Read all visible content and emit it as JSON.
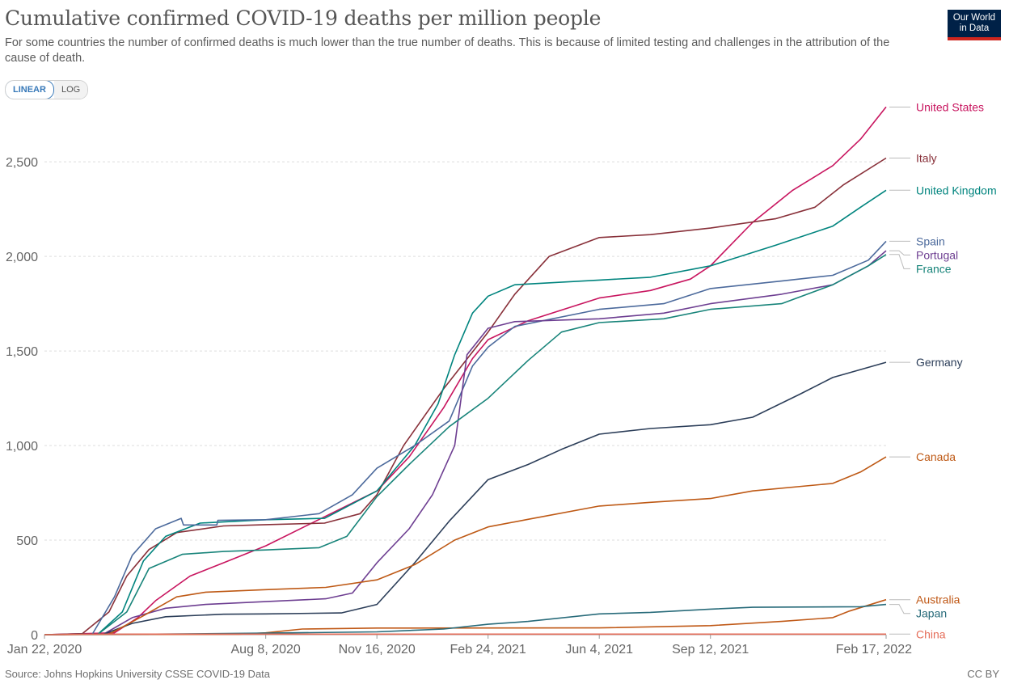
{
  "title": "Cumulative confirmed COVID-19 deaths per million people",
  "subtitle": "For some countries the number of confirmed deaths is much lower than the true number of deaths. This is because of limited testing and challenges in the attribution of the cause of death.",
  "logo": {
    "line1": "Our World",
    "line2": "in Data"
  },
  "toggle": {
    "linear": "LINEAR",
    "log": "LOG",
    "selected": "LINEAR"
  },
  "source": "Source: Johns Hopkins University CSSE COVID-19 Data",
  "license": "CC BY",
  "chart_data": {
    "type": "line",
    "x_label": "",
    "y_label": "",
    "x_range": [
      "2020-01-22",
      "2022-02-17"
    ],
    "y_range": [
      0,
      2800
    ],
    "grid": "horizontal dashed",
    "y_ticks": [
      {
        "value": 0,
        "label": "0"
      },
      {
        "value": 500,
        "label": "500"
      },
      {
        "value": 1000,
        "label": "1,000"
      },
      {
        "value": 1500,
        "label": "1,500"
      },
      {
        "value": 2000,
        "label": "2,000"
      },
      {
        "value": 2500,
        "label": "2,500"
      }
    ],
    "x_ticks": [
      {
        "value": "2020-01-22",
        "label": "Jan 22, 2020"
      },
      {
        "value": "2020-08-08",
        "label": "Aug 8, 2020"
      },
      {
        "value": "2020-11-16",
        "label": "Nov 16, 2020"
      },
      {
        "value": "2021-02-24",
        "label": "Feb 24, 2021"
      },
      {
        "value": "2021-06-04",
        "label": "Jun 4, 2021"
      },
      {
        "value": "2021-09-12",
        "label": "Sep 12, 2021"
      },
      {
        "value": "2022-02-17",
        "label": "Feb 17, 2022"
      }
    ],
    "legend_position": "right end labels",
    "series": [
      {
        "name": "United States",
        "color": "#c8155f",
        "label_value": 2790,
        "points": [
          [
            "2020-01-22",
            0
          ],
          [
            "2020-03-25",
            10
          ],
          [
            "2020-04-15",
            90
          ],
          [
            "2020-05-01",
            180
          ],
          [
            "2020-06-01",
            310
          ],
          [
            "2020-07-01",
            380
          ],
          [
            "2020-08-08",
            470
          ],
          [
            "2020-09-15",
            580
          ],
          [
            "2020-11-16",
            760
          ],
          [
            "2020-12-15",
            940
          ],
          [
            "2021-01-15",
            1200
          ],
          [
            "2021-02-10",
            1460
          ],
          [
            "2021-02-24",
            1560
          ],
          [
            "2021-04-01",
            1660
          ],
          [
            "2021-06-04",
            1780
          ],
          [
            "2021-07-20",
            1820
          ],
          [
            "2021-08-25",
            1880
          ],
          [
            "2021-09-12",
            1950
          ],
          [
            "2021-10-20",
            2180
          ],
          [
            "2021-11-25",
            2350
          ],
          [
            "2021-12-31",
            2480
          ],
          [
            "2022-01-25",
            2620
          ],
          [
            "2022-02-17",
            2790
          ]
        ]
      },
      {
        "name": "Italy",
        "color": "#883039",
        "label_value": 2520,
        "points": [
          [
            "2020-01-22",
            0
          ],
          [
            "2020-02-25",
            5
          ],
          [
            "2020-03-20",
            120
          ],
          [
            "2020-04-05",
            310
          ],
          [
            "2020-04-25",
            450
          ],
          [
            "2020-05-20",
            540
          ],
          [
            "2020-07-01",
            575
          ],
          [
            "2020-08-08",
            582
          ],
          [
            "2020-09-30",
            590
          ],
          [
            "2020-11-01",
            640
          ],
          [
            "2020-11-16",
            740
          ],
          [
            "2020-12-10",
            1000
          ],
          [
            "2021-01-15",
            1300
          ],
          [
            "2021-02-24",
            1600
          ],
          [
            "2021-03-20",
            1800
          ],
          [
            "2021-04-20",
            2000
          ],
          [
            "2021-06-04",
            2100
          ],
          [
            "2021-07-20",
            2115
          ],
          [
            "2021-09-12",
            2150
          ],
          [
            "2021-11-10",
            2200
          ],
          [
            "2021-12-15",
            2260
          ],
          [
            "2022-01-10",
            2380
          ],
          [
            "2022-02-17",
            2520
          ]
        ]
      },
      {
        "name": "United Kingdom",
        "color": "#00847e",
        "label_value": 2350,
        "points": [
          [
            "2020-01-22",
            0
          ],
          [
            "2020-03-10",
            2
          ],
          [
            "2020-04-01",
            120
          ],
          [
            "2020-04-20",
            390
          ],
          [
            "2020-05-10",
            520
          ],
          [
            "2020-06-10",
            590
          ],
          [
            "2020-08-08",
            608
          ],
          [
            "2020-09-30",
            615
          ],
          [
            "2020-11-16",
            760
          ],
          [
            "2020-12-20",
            1000
          ],
          [
            "2021-01-10",
            1220
          ],
          [
            "2021-01-25",
            1480
          ],
          [
            "2021-02-10",
            1700
          ],
          [
            "2021-02-24",
            1790
          ],
          [
            "2021-03-20",
            1850
          ],
          [
            "2021-06-04",
            1875
          ],
          [
            "2021-07-20",
            1890
          ],
          [
            "2021-09-12",
            1950
          ],
          [
            "2021-11-10",
            2060
          ],
          [
            "2021-12-31",
            2160
          ],
          [
            "2022-01-25",
            2260
          ],
          [
            "2022-02-17",
            2350
          ]
        ]
      },
      {
        "name": "Spain",
        "color": "#4c6a9c",
        "label_value": 2080,
        "points": [
          [
            "2020-01-22",
            0
          ],
          [
            "2020-03-05",
            2
          ],
          [
            "2020-03-25",
            200
          ],
          [
            "2020-04-10",
            420
          ],
          [
            "2020-05-01",
            560
          ],
          [
            "2020-05-24",
            615
          ],
          [
            "2020-05-26",
            580
          ],
          [
            "2020-06-25",
            580
          ],
          [
            "2020-06-26",
            605
          ],
          [
            "2020-08-08",
            608
          ],
          [
            "2020-09-25",
            640
          ],
          [
            "2020-10-25",
            740
          ],
          [
            "2020-11-16",
            880
          ],
          [
            "2020-12-20",
            1000
          ],
          [
            "2021-01-20",
            1130
          ],
          [
            "2021-02-10",
            1420
          ],
          [
            "2021-02-24",
            1520
          ],
          [
            "2021-03-20",
            1630
          ],
          [
            "2021-06-04",
            1720
          ],
          [
            "2021-08-01",
            1750
          ],
          [
            "2021-09-12",
            1830
          ],
          [
            "2021-11-15",
            1870
          ],
          [
            "2021-12-31",
            1900
          ],
          [
            "2022-02-01",
            1980
          ],
          [
            "2022-02-17",
            2080
          ]
        ]
      },
      {
        "name": "Portugal",
        "color": "#6d3e91",
        "label_value": 2030,
        "points": [
          [
            "2020-01-22",
            0
          ],
          [
            "2020-03-15",
            2
          ],
          [
            "2020-04-10",
            90
          ],
          [
            "2020-05-10",
            140
          ],
          [
            "2020-06-15",
            160
          ],
          [
            "2020-08-08",
            175
          ],
          [
            "2020-10-01",
            190
          ],
          [
            "2020-10-25",
            220
          ],
          [
            "2020-11-16",
            380
          ],
          [
            "2020-12-15",
            560
          ],
          [
            "2021-01-05",
            740
          ],
          [
            "2021-01-25",
            1000
          ],
          [
            "2021-02-05",
            1480
          ],
          [
            "2021-02-24",
            1620
          ],
          [
            "2021-03-20",
            1655
          ],
          [
            "2021-06-04",
            1670
          ],
          [
            "2021-08-01",
            1700
          ],
          [
            "2021-09-12",
            1750
          ],
          [
            "2021-11-15",
            1800
          ],
          [
            "2021-12-31",
            1850
          ],
          [
            "2022-02-01",
            1950
          ],
          [
            "2022-02-17",
            2030
          ]
        ]
      },
      {
        "name": "France",
        "color": "#18847a",
        "label_value": 2010,
        "points": [
          [
            "2020-01-22",
            0
          ],
          [
            "2020-03-10",
            2
          ],
          [
            "2020-04-05",
            120
          ],
          [
            "2020-04-25",
            350
          ],
          [
            "2020-05-25",
            425
          ],
          [
            "2020-07-01",
            440
          ],
          [
            "2020-08-08",
            448
          ],
          [
            "2020-09-25",
            460
          ],
          [
            "2020-10-20",
            520
          ],
          [
            "2020-11-16",
            730
          ],
          [
            "2020-12-15",
            900
          ],
          [
            "2021-01-20",
            1100
          ],
          [
            "2021-02-24",
            1250
          ],
          [
            "2021-04-01",
            1450
          ],
          [
            "2021-05-01",
            1600
          ],
          [
            "2021-06-04",
            1650
          ],
          [
            "2021-08-01",
            1670
          ],
          [
            "2021-09-12",
            1720
          ],
          [
            "2021-11-15",
            1750
          ],
          [
            "2021-12-31",
            1850
          ],
          [
            "2022-02-01",
            1950
          ],
          [
            "2022-02-17",
            2010
          ]
        ]
      },
      {
        "name": "Germany",
        "color": "#2c3e59",
        "label_value": 1440,
        "points": [
          [
            "2020-01-22",
            0
          ],
          [
            "2020-03-15",
            2
          ],
          [
            "2020-04-10",
            60
          ],
          [
            "2020-05-10",
            95
          ],
          [
            "2020-07-01",
            108
          ],
          [
            "2020-08-08",
            110
          ],
          [
            "2020-10-15",
            115
          ],
          [
            "2020-11-16",
            160
          ],
          [
            "2020-12-20",
            380
          ],
          [
            "2021-01-20",
            600
          ],
          [
            "2021-02-24",
            820
          ],
          [
            "2021-04-01",
            900
          ],
          [
            "2021-05-01",
            980
          ],
          [
            "2021-06-04",
            1060
          ],
          [
            "2021-07-20",
            1090
          ],
          [
            "2021-09-12",
            1110
          ],
          [
            "2021-10-20",
            1150
          ],
          [
            "2021-12-01",
            1270
          ],
          [
            "2021-12-31",
            1360
          ],
          [
            "2022-02-17",
            1440
          ]
        ]
      },
      {
        "name": "Canada",
        "color": "#be5915",
        "label_value": 940,
        "points": [
          [
            "2020-01-22",
            0
          ],
          [
            "2020-03-20",
            2
          ],
          [
            "2020-04-20",
            100
          ],
          [
            "2020-05-20",
            200
          ],
          [
            "2020-06-15",
            225
          ],
          [
            "2020-08-08",
            238
          ],
          [
            "2020-10-01",
            250
          ],
          [
            "2020-11-16",
            290
          ],
          [
            "2020-12-20",
            370
          ],
          [
            "2021-01-25",
            500
          ],
          [
            "2021-02-24",
            570
          ],
          [
            "2021-04-01",
            610
          ],
          [
            "2021-06-04",
            680
          ],
          [
            "2021-07-20",
            700
          ],
          [
            "2021-09-12",
            720
          ],
          [
            "2021-10-20",
            760
          ],
          [
            "2021-12-31",
            800
          ],
          [
            "2022-01-25",
            860
          ],
          [
            "2022-02-17",
            940
          ]
        ]
      },
      {
        "name": "Australia",
        "color": "#c05917",
        "label_value": 185,
        "points": [
          [
            "2020-01-22",
            0
          ],
          [
            "2020-07-15",
            2
          ],
          [
            "2020-08-08",
            10
          ],
          [
            "2020-09-10",
            30
          ],
          [
            "2020-11-16",
            35
          ],
          [
            "2021-06-04",
            36
          ],
          [
            "2021-09-12",
            48
          ],
          [
            "2021-11-15",
            70
          ],
          [
            "2021-12-31",
            90
          ],
          [
            "2022-01-15",
            125
          ],
          [
            "2022-02-17",
            185
          ]
        ]
      },
      {
        "name": "Japan",
        "color": "#286b7a",
        "label_value": 160,
        "points": [
          [
            "2020-01-22",
            0
          ],
          [
            "2020-05-01",
            3
          ],
          [
            "2020-08-08",
            8
          ],
          [
            "2020-11-16",
            15
          ],
          [
            "2021-01-15",
            30
          ],
          [
            "2021-02-24",
            55
          ],
          [
            "2021-04-01",
            70
          ],
          [
            "2021-06-04",
            110
          ],
          [
            "2021-07-20",
            118
          ],
          [
            "2021-09-12",
            135
          ],
          [
            "2021-10-20",
            145
          ],
          [
            "2022-01-25",
            148
          ],
          [
            "2022-02-17",
            160
          ]
        ]
      },
      {
        "name": "China",
        "color": "#e56e5a",
        "label_value": 3,
        "points": [
          [
            "2020-01-22",
            0
          ],
          [
            "2020-03-01",
            2
          ],
          [
            "2020-04-20",
            3
          ],
          [
            "2022-02-17",
            3
          ]
        ]
      }
    ]
  }
}
